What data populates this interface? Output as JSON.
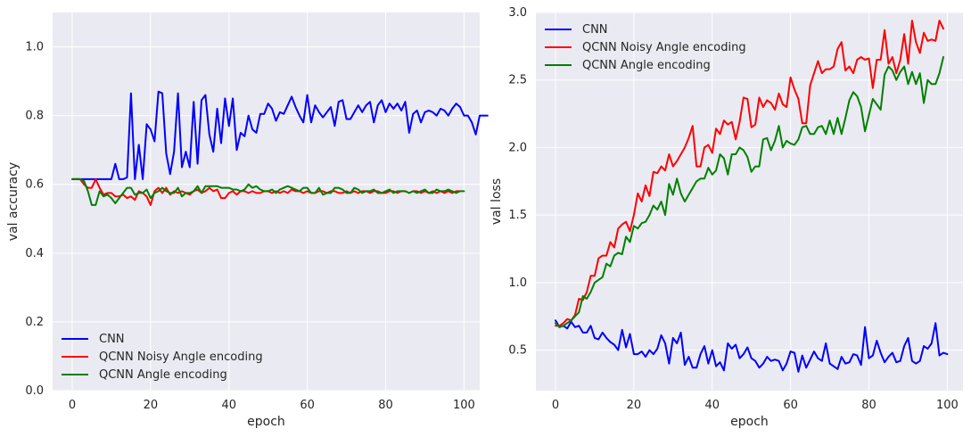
{
  "chart_data": [
    {
      "type": "line",
      "xlabel": "epoch",
      "ylabel": "val accuracy",
      "xlim": [
        -5,
        104
      ],
      "ylim": [
        0,
        1.1
      ],
      "xticks": [
        "0",
        "20",
        "40",
        "60",
        "80",
        "100"
      ],
      "yticks": [
        "0.0",
        "0.2",
        "0.4",
        "0.6",
        "0.8",
        "1.0"
      ],
      "grid": true,
      "legend": "lower-left",
      "series": [
        {
          "name": "CNN",
          "color": "#0000ff",
          "values": [
            0.615,
            0.615,
            0.615,
            0.615,
            0.615,
            0.615,
            0.615,
            0.615,
            0.615,
            0.615,
            0.615,
            0.66,
            0.615,
            0.615,
            0.62,
            0.865,
            0.615,
            0.715,
            0.615,
            0.775,
            0.76,
            0.725,
            0.87,
            0.865,
            0.69,
            0.63,
            0.695,
            0.865,
            0.65,
            0.695,
            0.65,
            0.84,
            0.66,
            0.845,
            0.86,
            0.745,
            0.695,
            0.82,
            0.72,
            0.85,
            0.77,
            0.85,
            0.7,
            0.75,
            0.74,
            0.8,
            0.76,
            0.75,
            0.805,
            0.805,
            0.835,
            0.82,
            0.785,
            0.81,
            0.805,
            0.83,
            0.855,
            0.825,
            0.8,
            0.78,
            0.86,
            0.78,
            0.83,
            0.81,
            0.795,
            0.81,
            0.825,
            0.77,
            0.84,
            0.845,
            0.79,
            0.79,
            0.81,
            0.83,
            0.81,
            0.83,
            0.84,
            0.78,
            0.83,
            0.845,
            0.81,
            0.835,
            0.82,
            0.835,
            0.815,
            0.84,
            0.75,
            0.805,
            0.815,
            0.78,
            0.81,
            0.815,
            0.81,
            0.8,
            0.82,
            0.815,
            0.8,
            0.82,
            0.835,
            0.825,
            0.8,
            0.8,
            0.78,
            0.745,
            0.8,
            0.8,
            0.8
          ]
        },
        {
          "name": "QCNN Noisy Angle encoding",
          "color": "#ff0000",
          "values": [
            0.615,
            0.615,
            0.615,
            0.6,
            0.59,
            0.59,
            0.615,
            0.59,
            0.57,
            0.575,
            0.575,
            0.565,
            0.565,
            0.57,
            0.56,
            0.565,
            0.555,
            0.58,
            0.575,
            0.565,
            0.54,
            0.58,
            0.59,
            0.575,
            0.59,
            0.57,
            0.58,
            0.575,
            0.58,
            0.575,
            0.57,
            0.58,
            0.585,
            0.575,
            0.58,
            0.59,
            0.58,
            0.585,
            0.56,
            0.56,
            0.575,
            0.58,
            0.57,
            0.58,
            0.58,
            0.575,
            0.58,
            0.575,
            0.575,
            0.58,
            0.58,
            0.575,
            0.58,
            0.575,
            0.58,
            0.575,
            0.585,
            0.58,
            0.58,
            0.575,
            0.58,
            0.575,
            0.575,
            0.58,
            0.58,
            0.575,
            0.58,
            0.58,
            0.575,
            0.575,
            0.58,
            0.575,
            0.58,
            0.575,
            0.58,
            0.58,
            0.575,
            0.58,
            0.58,
            0.575,
            0.575,
            0.58,
            0.58,
            0.575,
            0.58,
            0.58,
            0.575,
            0.58,
            0.58,
            0.575,
            0.58,
            0.575,
            0.58,
            0.575,
            0.58,
            0.575,
            0.58,
            0.575,
            0.58,
            0.58
          ]
        },
        {
          "name": "QCNN Angle encoding",
          "color": "#008000",
          "values": [
            0.615,
            0.615,
            0.615,
            0.61,
            0.58,
            0.54,
            0.54,
            0.58,
            0.565,
            0.57,
            0.56,
            0.545,
            0.56,
            0.575,
            0.59,
            0.59,
            0.57,
            0.575,
            0.575,
            0.585,
            0.56,
            0.575,
            0.58,
            0.59,
            0.58,
            0.575,
            0.575,
            0.59,
            0.565,
            0.575,
            0.575,
            0.58,
            0.595,
            0.575,
            0.595,
            0.595,
            0.595,
            0.595,
            0.59,
            0.59,
            0.59,
            0.585,
            0.585,
            0.58,
            0.585,
            0.6,
            0.59,
            0.595,
            0.585,
            0.58,
            0.58,
            0.585,
            0.575,
            0.585,
            0.59,
            0.595,
            0.59,
            0.585,
            0.58,
            0.59,
            0.59,
            0.575,
            0.575,
            0.59,
            0.57,
            0.575,
            0.575,
            0.59,
            0.59,
            0.585,
            0.575,
            0.575,
            0.59,
            0.585,
            0.575,
            0.58,
            0.58,
            0.585,
            0.575,
            0.575,
            0.58,
            0.585,
            0.575,
            0.58,
            0.58,
            0.58,
            0.575,
            0.58,
            0.575,
            0.58,
            0.585,
            0.575,
            0.575,
            0.585,
            0.58,
            0.58,
            0.585,
            0.58,
            0.575,
            0.58,
            0.58
          ]
        }
      ]
    },
    {
      "type": "line",
      "xlabel": "epoch",
      "ylabel": "val loss",
      "xlim": [
        -5,
        104
      ],
      "ylim": [
        0.2,
        3.0
      ],
      "xticks": [
        "0",
        "20",
        "40",
        "60",
        "80",
        "100"
      ],
      "yticks": [
        "0.5",
        "1.0",
        "1.5",
        "2.0",
        "2.5",
        "3.0"
      ],
      "grid": true,
      "legend": "upper-left",
      "series": [
        {
          "name": "CNN",
          "color": "#0000ff",
          "values": [
            0.72,
            0.67,
            0.68,
            0.66,
            0.71,
            0.67,
            0.68,
            0.63,
            0.63,
            0.68,
            0.59,
            0.58,
            0.63,
            0.59,
            0.56,
            0.54,
            0.5,
            0.65,
            0.52,
            0.62,
            0.47,
            0.47,
            0.49,
            0.45,
            0.5,
            0.47,
            0.51,
            0.61,
            0.55,
            0.4,
            0.59,
            0.55,
            0.63,
            0.39,
            0.45,
            0.37,
            0.37,
            0.47,
            0.53,
            0.4,
            0.5,
            0.38,
            0.41,
            0.35,
            0.55,
            0.51,
            0.54,
            0.44,
            0.47,
            0.52,
            0.44,
            0.42,
            0.37,
            0.4,
            0.45,
            0.42,
            0.43,
            0.42,
            0.35,
            0.4,
            0.49,
            0.48,
            0.34,
            0.46,
            0.37,
            0.43,
            0.49,
            0.44,
            0.42,
            0.55,
            0.4,
            0.38,
            0.36,
            0.45,
            0.4,
            0.41,
            0.47,
            0.46,
            0.39,
            0.67,
            0.44,
            0.46,
            0.57,
            0.48,
            0.41,
            0.45,
            0.48,
            0.41,
            0.42,
            0.53,
            0.59,
            0.42,
            0.4,
            0.42,
            0.53,
            0.51,
            0.55,
            0.7,
            0.46,
            0.48,
            0.47
          ]
        },
        {
          "name": "QCNN Noisy Angle encoding",
          "color": "#ff0000",
          "values": [
            0.68,
            0.68,
            0.7,
            0.73,
            0.72,
            0.76,
            0.88,
            0.87,
            0.93,
            1.05,
            1.05,
            1.18,
            1.2,
            1.2,
            1.3,
            1.26,
            1.4,
            1.43,
            1.45,
            1.38,
            1.5,
            1.66,
            1.6,
            1.72,
            1.64,
            1.82,
            1.81,
            1.86,
            1.83,
            1.95,
            1.86,
            1.9,
            1.95,
            2.0,
            2.07,
            2.16,
            1.86,
            1.86,
            2.0,
            2.02,
            1.96,
            2.14,
            2.1,
            2.2,
            2.17,
            2.19,
            2.06,
            2.19,
            2.37,
            2.36,
            2.15,
            2.17,
            2.37,
            2.3,
            2.35,
            2.33,
            2.28,
            2.4,
            2.32,
            2.3,
            2.52,
            2.43,
            2.36,
            2.18,
            2.18,
            2.46,
            2.55,
            2.64,
            2.55,
            2.58,
            2.58,
            2.6,
            2.73,
            2.78,
            2.57,
            2.6,
            2.55,
            2.65,
            2.67,
            2.65,
            2.66,
            2.44,
            2.65,
            2.65,
            2.87,
            2.62,
            2.67,
            2.55,
            2.65,
            2.84,
            2.62,
            2.94,
            2.78,
            2.7,
            2.85,
            2.79,
            2.8,
            2.79,
            2.94,
            2.88
          ]
        },
        {
          "name": "QCNN Angle encoding",
          "color": "#008000",
          "values": [
            0.7,
            0.67,
            0.68,
            0.7,
            0.72,
            0.75,
            0.78,
            0.9,
            0.88,
            0.93,
            1.0,
            1.02,
            1.04,
            1.14,
            1.12,
            1.2,
            1.22,
            1.21,
            1.34,
            1.3,
            1.42,
            1.4,
            1.44,
            1.45,
            1.5,
            1.57,
            1.54,
            1.6,
            1.5,
            1.73,
            1.65,
            1.77,
            1.66,
            1.6,
            1.65,
            1.7,
            1.75,
            1.77,
            1.77,
            1.85,
            1.8,
            1.83,
            1.95,
            1.92,
            1.8,
            1.95,
            1.95,
            2.0,
            1.98,
            1.93,
            1.82,
            1.86,
            1.86,
            2.06,
            2.07,
            1.98,
            2.05,
            2.16,
            2.0,
            2.05,
            2.03,
            2.02,
            2.06,
            2.15,
            2.16,
            2.1,
            2.1,
            2.15,
            2.16,
            2.1,
            2.2,
            2.1,
            2.22,
            2.1,
            2.22,
            2.35,
            2.41,
            2.38,
            2.3,
            2.12,
            2.24,
            2.36,
            2.32,
            2.28,
            2.54,
            2.6,
            2.57,
            2.5,
            2.56,
            2.6,
            2.47,
            2.56,
            2.47,
            2.55,
            2.33,
            2.5,
            2.47,
            2.47,
            2.55,
            2.67
          ]
        }
      ]
    }
  ]
}
